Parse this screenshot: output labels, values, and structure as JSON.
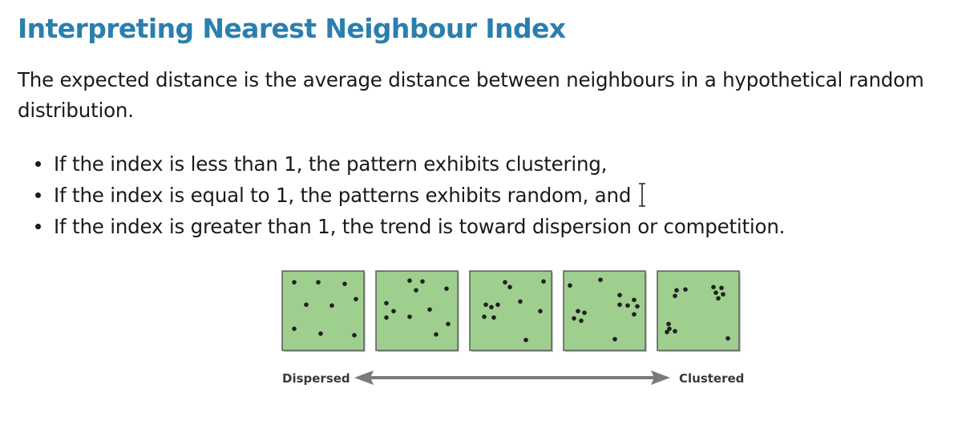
{
  "slide": {
    "title": "Interpreting Nearest Neighbour Index",
    "intro": "The expected distance is the average distance between neighbours in a hypothetical random distribution.",
    "bullets": [
      "If the index is less than 1, the pattern exhibits clustering,",
      "If the index is equal to 1, the patterns exhibits random, and",
      "If the index is greater than 1, the trend is toward dispersion or competition."
    ]
  },
  "figure": {
    "panel_fill": "#9fcf8e",
    "panel_border": "#5a5a5a",
    "dot_color": "#1e1e1e",
    "scale_left_label": "Dispersed",
    "scale_right_label": "Clustered",
    "panels": [
      {
        "name": "dispersed"
      },
      {
        "name": "moderately-dispersed"
      },
      {
        "name": "random"
      },
      {
        "name": "moderately-clustered"
      },
      {
        "name": "clustered"
      }
    ]
  },
  "accent_color": "#2a7fae"
}
